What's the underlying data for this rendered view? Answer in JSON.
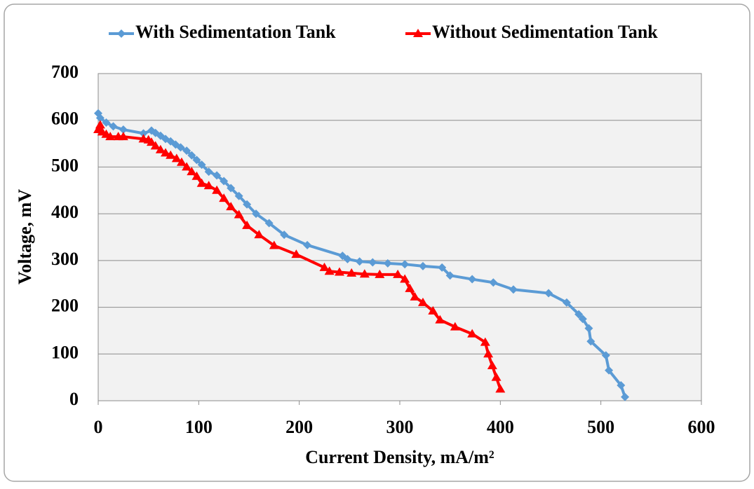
{
  "chart_data": {
    "type": "line",
    "xlabel": "Current Density, mA/m²",
    "ylabel": "Voltage, mV",
    "xlim": [
      0,
      600
    ],
    "xticks": [
      0,
      100,
      200,
      300,
      400,
      500,
      600
    ],
    "ylim": [
      0,
      700
    ],
    "yticks": [
      0,
      100,
      200,
      300,
      400,
      500,
      600,
      700
    ],
    "grid": true,
    "legend": "top",
    "series": [
      {
        "name": "With Sedimentation Tank",
        "color": "#5b9bd5",
        "marker": "diamond",
        "x": [
          0,
          2,
          8,
          15,
          25,
          45,
          53,
          57,
          62,
          67,
          72,
          77,
          82,
          88,
          93,
          98,
          103,
          110,
          118,
          125,
          132,
          140,
          148,
          157,
          170,
          185,
          208,
          243,
          248,
          260,
          273,
          288,
          305,
          323,
          342,
          350,
          372,
          393,
          413,
          448,
          466,
          478,
          482,
          488,
          490,
          505,
          508,
          520,
          524
        ],
        "values": [
          615,
          605,
          595,
          587,
          580,
          572,
          578,
          573,
          567,
          560,
          555,
          548,
          542,
          535,
          525,
          515,
          505,
          490,
          482,
          470,
          455,
          438,
          420,
          400,
          380,
          355,
          333,
          310,
          303,
          298,
          296,
          294,
          292,
          288,
          285,
          268,
          260,
          253,
          238,
          230,
          210,
          185,
          175,
          155,
          127,
          97,
          65,
          33,
          8
        ]
      },
      {
        "name": "Without Sedimentation Tank",
        "color": "#ff0000",
        "marker": "triangle",
        "x": [
          0,
          2,
          4,
          8,
          12,
          20,
          25,
          45,
          50,
          53,
          57,
          62,
          67,
          72,
          78,
          83,
          88,
          93,
          98,
          103,
          110,
          118,
          125,
          132,
          140,
          148,
          160,
          175,
          197,
          225,
          230,
          240,
          252,
          265,
          280,
          298,
          305,
          310,
          315,
          323,
          333,
          340,
          355,
          372,
          385,
          388,
          392,
          396,
          400
        ],
        "values": [
          580,
          590,
          575,
          570,
          565,
          565,
          565,
          560,
          558,
          553,
          545,
          537,
          530,
          525,
          518,
          510,
          500,
          490,
          480,
          465,
          460,
          450,
          433,
          415,
          398,
          375,
          355,
          332,
          313,
          285,
          277,
          275,
          273,
          271,
          270,
          270,
          260,
          240,
          222,
          210,
          192,
          173,
          158,
          143,
          125,
          100,
          75,
          50,
          25
        ]
      }
    ]
  }
}
